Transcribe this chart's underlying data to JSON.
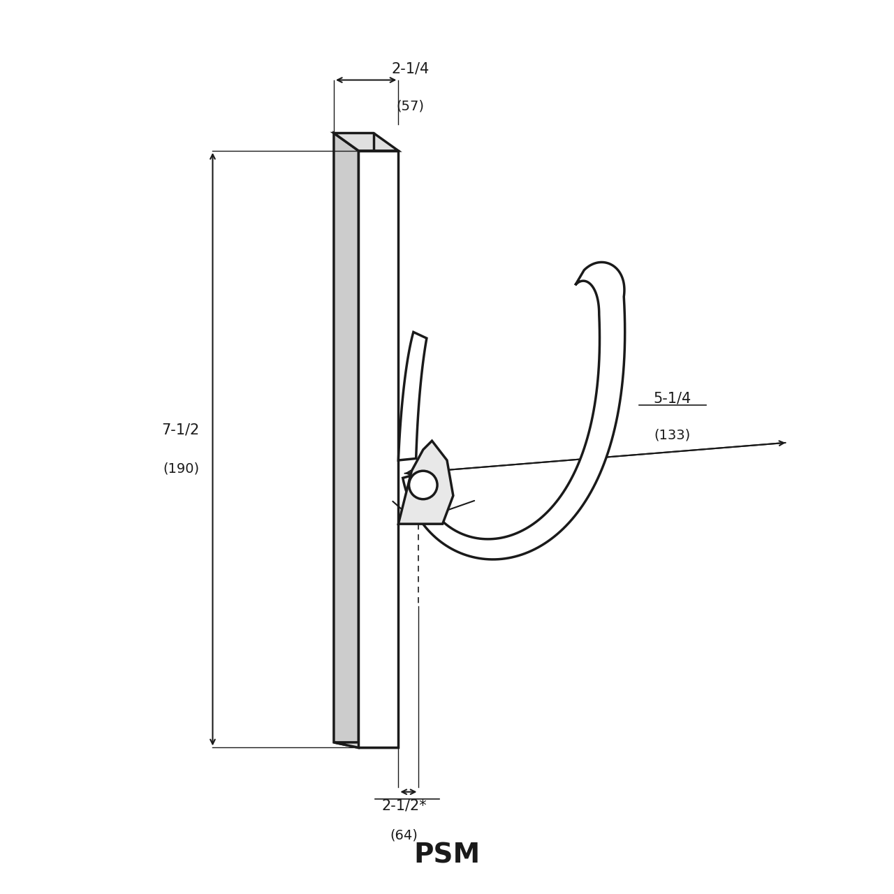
{
  "title": "PSM",
  "title_fontsize": 28,
  "title_fontweight": "bold",
  "bg_color": "#ffffff",
  "line_color": "#1a1a1a",
  "dim_text_color": "#1a1a1a",
  "dim_top_label_line1": "2-1/4",
  "dim_top_label_line2": "(57)",
  "dim_left_label_line1": "7-1/2",
  "dim_left_label_line2": "(190)",
  "dim_bottom_label_line1": "2-1/2*",
  "dim_bottom_label_line2": "(64)",
  "dim_right_label_line1": "5-1/4",
  "dim_right_label_line2": "(133)"
}
